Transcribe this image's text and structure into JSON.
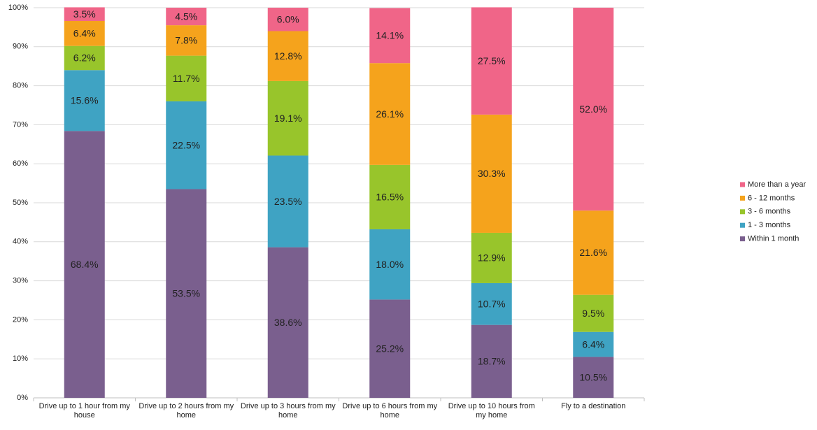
{
  "chart_data": {
    "type": "stacked_bar_100",
    "categories": [
      "Drive up to 1 hour from my house",
      "Drive up to 2 hours from my home",
      "Drive up to 3 hours from my home",
      "Drive up to 6 hours from my home",
      "Drive up to 10 hours from my home",
      "Fly to a destination"
    ],
    "series": [
      {
        "name": "Within 1 month",
        "color": "#7a5f8e",
        "values": [
          68.4,
          53.5,
          38.6,
          25.2,
          18.7,
          10.5
        ],
        "value_labels": [
          "68.4%",
          "53.5%",
          "38.6%",
          "25.2%",
          "18.7%",
          "10.5%"
        ]
      },
      {
        "name": "1 - 3 months",
        "color": "#3fa3c3",
        "values": [
          15.6,
          22.5,
          23.5,
          18.0,
          10.7,
          6.4
        ],
        "value_labels": [
          "15.6%",
          "22.5%",
          "23.5%",
          "18.0%",
          "10.7%",
          "6.4%"
        ]
      },
      {
        "name": "3 - 6 months",
        "color": "#98c52b",
        "values": [
          6.2,
          11.7,
          19.1,
          16.5,
          12.9,
          9.5
        ],
        "value_labels": [
          "6.2%",
          "11.7%",
          "19.1%",
          "16.5%",
          "12.9%",
          "9.5%"
        ]
      },
      {
        "name": "6 - 12 months",
        "color": "#f5a31c",
        "values": [
          6.4,
          7.8,
          12.8,
          26.1,
          30.3,
          21.6
        ],
        "value_labels": [
          "6.4%",
          "7.8%",
          "12.8%",
          "26.1%",
          "30.3%",
          "21.6%"
        ]
      },
      {
        "name": "More than a year",
        "color": "#f06588",
        "values": [
          3.5,
          4.5,
          6.0,
          14.1,
          27.5,
          52.0
        ],
        "value_labels": [
          "3.5%",
          "4.5%",
          "6.0%",
          "14.1%",
          "27.5%",
          "52.0%"
        ]
      }
    ],
    "ylim": [
      0,
      100
    ],
    "yticks": [
      {
        "value": 0,
        "label": "0%"
      },
      {
        "value": 10,
        "label": "10%"
      },
      {
        "value": 20,
        "label": "20%"
      },
      {
        "value": 30,
        "label": "30%"
      },
      {
        "value": 40,
        "label": "40%"
      },
      {
        "value": 50,
        "label": "50%"
      },
      {
        "value": 60,
        "label": "60%"
      },
      {
        "value": 70,
        "label": "70%"
      },
      {
        "value": 80,
        "label": "80%"
      },
      {
        "value": 90,
        "label": "90%"
      },
      {
        "value": 100,
        "label": "100%"
      }
    ],
    "grid": true,
    "legend": "right"
  }
}
